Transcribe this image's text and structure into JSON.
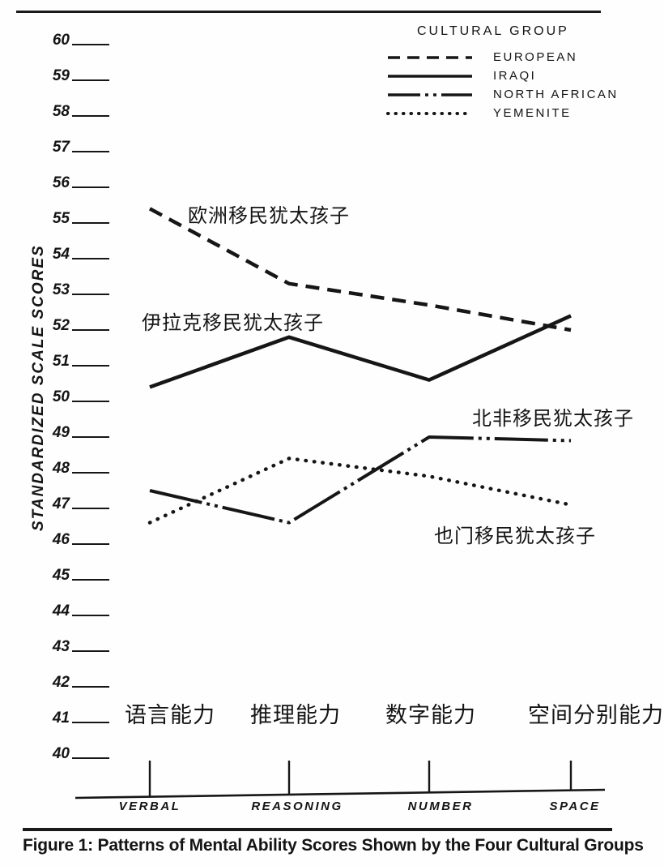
{
  "page": {
    "figure_caption": "Figure 1:  Patterns of Mental Ability Scores Shown by the Four Cultural Groups"
  },
  "colors": {
    "ink": "#161616",
    "paper": "#fefefe"
  },
  "legend": {
    "title": "CULTURAL GROUP",
    "items": [
      {
        "label": "EUROPEAN",
        "style": "dashed"
      },
      {
        "label": "IRAQI",
        "style": "solid"
      },
      {
        "label": "NORTH AFRICAN",
        "style": "dash-dot-dot"
      },
      {
        "label": "YEMENITE",
        "style": "dotted"
      }
    ]
  },
  "chart_data": {
    "type": "line",
    "title": "Patterns of Mental Ability Scores Shown by the Four Cultural Groups",
    "xlabel": "",
    "ylabel": "STANDARDIZED SCALE SCORES",
    "ylim": [
      40,
      60
    ],
    "grid": false,
    "legend_position": "top-right",
    "y_ticks": [
      60,
      59,
      58,
      57,
      56,
      55,
      54,
      53,
      52,
      51,
      50,
      49,
      48,
      47,
      46,
      45,
      44,
      43,
      42,
      41,
      40
    ],
    "categories": [
      "VERBAL",
      "REASONING",
      "NUMBER",
      "SPACE"
    ],
    "categories_zh": [
      "语言能力",
      "推理能力",
      "数字能力",
      "空间分别能力"
    ],
    "series": [
      {
        "name": "EUROPEAN",
        "style": "dashed",
        "values": [
          55.4,
          53.3,
          52.7,
          52.0
        ],
        "annotation": "欧洲移民犹太孩子"
      },
      {
        "name": "IRAQI",
        "style": "solid",
        "values": [
          50.4,
          51.8,
          50.6,
          52.4
        ],
        "annotation": "伊拉克移民犹太孩子"
      },
      {
        "name": "NORTH AFRICAN",
        "style": "dash-dot-dot",
        "values": [
          47.5,
          46.6,
          49.0,
          48.9
        ],
        "annotation": "北非移民犹太孩子"
      },
      {
        "name": "YEMENITE",
        "style": "dotted",
        "values": [
          46.6,
          48.4,
          47.9,
          47.1
        ],
        "annotation": "也门移民犹太孩子"
      }
    ]
  }
}
